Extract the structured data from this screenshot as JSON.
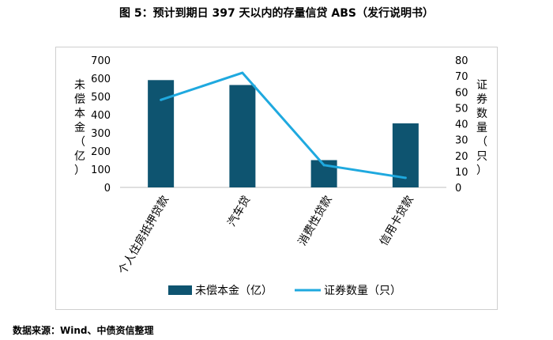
{
  "figure": {
    "title": "图 5：预计到期日 397 天以内的存量信贷 ABS（发行说明书）",
    "source": "数据来源：Wind、中债资信整理"
  },
  "chart_data": {
    "type": "bar",
    "categories": [
      "个人住房抵押贷款",
      "汽车贷",
      "消费性贷款",
      "信用卡贷款"
    ],
    "series": [
      {
        "name": "未偿本金（亿）",
        "type": "bar",
        "axis": "left",
        "color": "#0e5470",
        "values": [
          590,
          563,
          150,
          352
        ]
      },
      {
        "name": "证券数量（只）",
        "type": "line",
        "axis": "right",
        "color": "#1fa9df",
        "values": [
          55,
          72,
          14,
          6
        ]
      }
    ],
    "y_left": {
      "label": "未偿本金（亿）",
      "ylim": [
        0,
        700
      ],
      "ticks": [
        "0",
        "100",
        "200",
        "300",
        "400",
        "500",
        "600",
        "700"
      ]
    },
    "y_right": {
      "label": "证券数量（只）",
      "ylim": [
        0,
        80
      ],
      "ticks": [
        "0",
        "10",
        "20",
        "30",
        "40",
        "50",
        "60",
        "70",
        "80"
      ]
    },
    "grid": false,
    "legend": "bottom"
  }
}
